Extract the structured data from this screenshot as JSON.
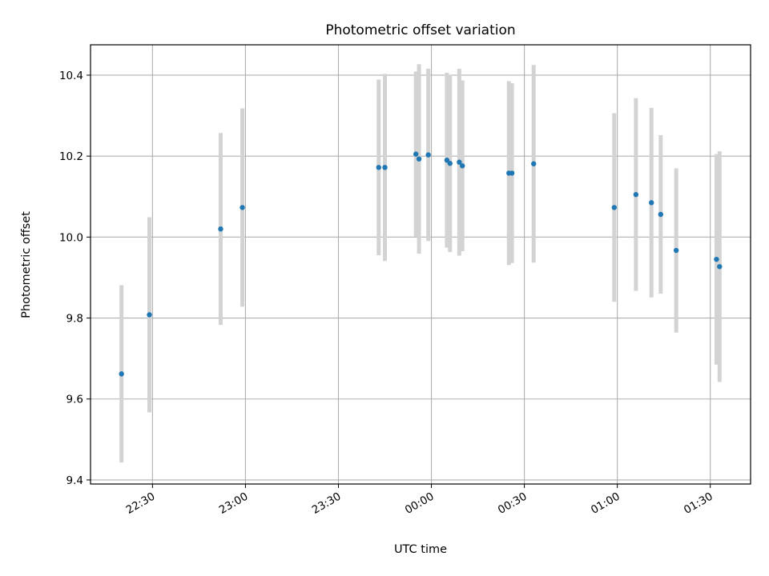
{
  "chart_data": {
    "type": "scatter",
    "title": "Photometric offset variation",
    "xlabel": "UTC time",
    "ylabel": "Photometric offset",
    "x_ticks": [
      "22:30",
      "23:00",
      "23:30",
      "00:00",
      "00:30",
      "01:00",
      "01:30"
    ],
    "y_ticks": [
      "9.4",
      "9.6",
      "9.8",
      "10.0",
      "10.2",
      "10.4"
    ],
    "xlim": [
      "22:10",
      "01:43"
    ],
    "ylim": [
      9.39,
      10.475
    ],
    "grid": true,
    "colors": {
      "point": "#1f77b4",
      "errorbar": "#d3d3d3",
      "grid": "#b0b0b0"
    },
    "points": [
      {
        "x": "22:20",
        "y": 9.662,
        "err": 0.219
      },
      {
        "x": "22:29",
        "y": 9.808,
        "err": 0.241
      },
      {
        "x": "22:52",
        "y": 10.02,
        "err": 0.237
      },
      {
        "x": "22:59",
        "y": 10.073,
        "err": 0.245
      },
      {
        "x": "23:43",
        "y": 10.172,
        "err": 0.217
      },
      {
        "x": "23:45",
        "y": 10.172,
        "err": 0.231
      },
      {
        "x": "23:55",
        "y": 10.205,
        "err": 0.204
      },
      {
        "x": "23:56",
        "y": 10.193,
        "err": 0.234
      },
      {
        "x": "23:59",
        "y": 10.203,
        "err": 0.213
      },
      {
        "x": "00:05",
        "y": 10.19,
        "err": 0.216
      },
      {
        "x": "00:06",
        "y": 10.182,
        "err": 0.219
      },
      {
        "x": "00:09",
        "y": 10.185,
        "err": 0.231
      },
      {
        "x": "00:10",
        "y": 10.176,
        "err": 0.211
      },
      {
        "x": "00:25",
        "y": 10.158,
        "err": 0.227
      },
      {
        "x": "00:26",
        "y": 10.158,
        "err": 0.222
      },
      {
        "x": "00:33",
        "y": 10.181,
        "err": 0.244
      },
      {
        "x": "00:59",
        "y": 10.073,
        "err": 0.233
      },
      {
        "x": "01:06",
        "y": 10.105,
        "err": 0.238
      },
      {
        "x": "01:11",
        "y": 10.085,
        "err": 0.234
      },
      {
        "x": "01:14",
        "y": 10.056,
        "err": 0.196
      },
      {
        "x": "01:19",
        "y": 9.967,
        "err": 0.203
      },
      {
        "x": "01:32",
        "y": 9.945,
        "err": 0.26
      },
      {
        "x": "01:33",
        "y": 9.927,
        "err": 0.285
      }
    ]
  }
}
